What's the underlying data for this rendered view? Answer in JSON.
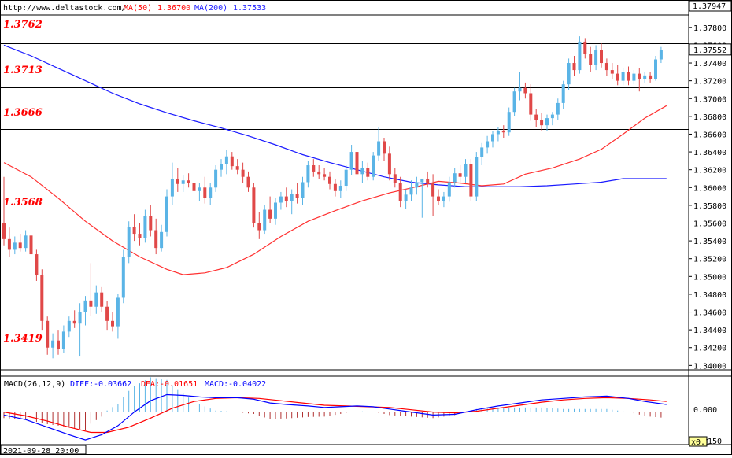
{
  "header": {
    "url": "http://www.deltastock.com/",
    "ma50_label": "MA(50)",
    "ma50_value": "1.36700",
    "ma200_label": "MA(200)",
    "ma200_value": "1.37533"
  },
  "price_axis": {
    "top_value": "1.37947",
    "current_value": "1.37552",
    "ticks": [
      "1.37800",
      "1.37600",
      "1.37400",
      "1.37200",
      "1.37000",
      "1.36800",
      "1.36600",
      "1.36400",
      "1.36200",
      "1.36000",
      "1.35800",
      "1.35600",
      "1.35400",
      "1.35200",
      "1.35000",
      "1.34800",
      "1.34600",
      "1.34400",
      "1.34200",
      "1.34000"
    ]
  },
  "levels": [
    "1.3762",
    "1.3713",
    "1.3666",
    "1.3568",
    "1.3419"
  ],
  "macd_header": {
    "title": "MACD(26,12,9)",
    "diff_label": "DIFF:",
    "diff_value": "-0.03662",
    "dea_label": "DEA:",
    "dea_value": "-0.01651",
    "macd_label": "MACD:",
    "macd_value": "-0.04022"
  },
  "macd_axis": {
    "zero_label": "0.000",
    "bottom_label": "150",
    "scale_badge": "x0.1"
  },
  "date_label": "2021-09-28 20:00",
  "colors": {
    "up": "#5ab4e6",
    "down": "#e04848",
    "ma50": "#ff3030",
    "ma200": "#1a1aff",
    "level_text": "#ff0000",
    "diff": "#0000ff",
    "dea": "#ff0000"
  },
  "chart_data": {
    "type": "candlestick",
    "title": "",
    "ylim": [
      1.3395,
      1.3794
    ],
    "horizontal_levels": [
      1.3762,
      1.3713,
      1.3666,
      1.3568,
      1.3419
    ],
    "candles": [
      {
        "o": 1.356,
        "h": 1.3612,
        "l": 1.3535,
        "c": 1.3542
      },
      {
        "o": 1.3542,
        "h": 1.3555,
        "l": 1.3522,
        "c": 1.353
      },
      {
        "o": 1.353,
        "h": 1.3545,
        "l": 1.3525,
        "c": 1.3538
      },
      {
        "o": 1.3538,
        "h": 1.3548,
        "l": 1.3528,
        "c": 1.3532
      },
      {
        "o": 1.3532,
        "h": 1.3552,
        "l": 1.3528,
        "c": 1.3546
      },
      {
        "o": 1.3546,
        "h": 1.3556,
        "l": 1.352,
        "c": 1.3525
      },
      {
        "o": 1.3525,
        "h": 1.353,
        "l": 1.3495,
        "c": 1.3502
      },
      {
        "o": 1.3502,
        "h": 1.3508,
        "l": 1.344,
        "c": 1.345
      },
      {
        "o": 1.345,
        "h": 1.3455,
        "l": 1.3412,
        "c": 1.342
      },
      {
        "o": 1.342,
        "h": 1.3436,
        "l": 1.3408,
        "c": 1.3428
      },
      {
        "o": 1.3428,
        "h": 1.344,
        "l": 1.3412,
        "c": 1.3418
      },
      {
        "o": 1.3418,
        "h": 1.3445,
        "l": 1.3414,
        "c": 1.3438
      },
      {
        "o": 1.3438,
        "h": 1.3455,
        "l": 1.3432,
        "c": 1.345
      },
      {
        "o": 1.345,
        "h": 1.3462,
        "l": 1.3442,
        "c": 1.3447
      },
      {
        "o": 1.3447,
        "h": 1.347,
        "l": 1.341,
        "c": 1.346
      },
      {
        "o": 1.346,
        "h": 1.3478,
        "l": 1.3445,
        "c": 1.3473
      },
      {
        "o": 1.3473,
        "h": 1.3515,
        "l": 1.3456,
        "c": 1.3466
      },
      {
        "o": 1.3466,
        "h": 1.349,
        "l": 1.3458,
        "c": 1.3482
      },
      {
        "o": 1.3482,
        "h": 1.3488,
        "l": 1.346,
        "c": 1.3466
      },
      {
        "o": 1.3466,
        "h": 1.3472,
        "l": 1.344,
        "c": 1.345
      },
      {
        "o": 1.345,
        "h": 1.346,
        "l": 1.3438,
        "c": 1.3444
      },
      {
        "o": 1.3444,
        "h": 1.348,
        "l": 1.343,
        "c": 1.3476
      },
      {
        "o": 1.3476,
        "h": 1.353,
        "l": 1.347,
        "c": 1.3522
      },
      {
        "o": 1.3522,
        "h": 1.3562,
        "l": 1.3515,
        "c": 1.3556
      },
      {
        "o": 1.3556,
        "h": 1.357,
        "l": 1.354,
        "c": 1.3548
      },
      {
        "o": 1.3548,
        "h": 1.356,
        "l": 1.3535,
        "c": 1.3543
      },
      {
        "o": 1.3543,
        "h": 1.3575,
        "l": 1.3538,
        "c": 1.3568
      },
      {
        "o": 1.3568,
        "h": 1.358,
        "l": 1.3545,
        "c": 1.3552
      },
      {
        "o": 1.3552,
        "h": 1.3565,
        "l": 1.3525,
        "c": 1.3532
      },
      {
        "o": 1.3532,
        "h": 1.3558,
        "l": 1.3528,
        "c": 1.355
      },
      {
        "o": 1.355,
        "h": 1.3598,
        "l": 1.3545,
        "c": 1.359
      },
      {
        "o": 1.359,
        "h": 1.3628,
        "l": 1.358,
        "c": 1.361
      },
      {
        "o": 1.361,
        "h": 1.3622,
        "l": 1.3595,
        "c": 1.3604
      },
      {
        "o": 1.3604,
        "h": 1.3614,
        "l": 1.3595,
        "c": 1.3608
      },
      {
        "o": 1.3608,
        "h": 1.3616,
        "l": 1.36,
        "c": 1.3605
      },
      {
        "o": 1.3605,
        "h": 1.3618,
        "l": 1.359,
        "c": 1.3596
      },
      {
        "o": 1.3596,
        "h": 1.3605,
        "l": 1.3585,
        "c": 1.36
      },
      {
        "o": 1.36,
        "h": 1.3612,
        "l": 1.3582,
        "c": 1.3588
      },
      {
        "o": 1.3588,
        "h": 1.3605,
        "l": 1.358,
        "c": 1.36
      },
      {
        "o": 1.36,
        "h": 1.3625,
        "l": 1.3595,
        "c": 1.362
      },
      {
        "o": 1.362,
        "h": 1.3632,
        "l": 1.3612,
        "c": 1.3626
      },
      {
        "o": 1.3626,
        "h": 1.3642,
        "l": 1.3615,
        "c": 1.3635
      },
      {
        "o": 1.3635,
        "h": 1.364,
        "l": 1.362,
        "c": 1.3624
      },
      {
        "o": 1.3624,
        "h": 1.3632,
        "l": 1.3615,
        "c": 1.362
      },
      {
        "o": 1.362,
        "h": 1.3628,
        "l": 1.3605,
        "c": 1.3612
      },
      {
        "o": 1.3612,
        "h": 1.3618,
        "l": 1.3595,
        "c": 1.36
      },
      {
        "o": 1.36,
        "h": 1.3605,
        "l": 1.3555,
        "c": 1.356
      },
      {
        "o": 1.356,
        "h": 1.3572,
        "l": 1.3542,
        "c": 1.3552
      },
      {
        "o": 1.3552,
        "h": 1.358,
        "l": 1.3548,
        "c": 1.3575
      },
      {
        "o": 1.3575,
        "h": 1.359,
        "l": 1.356,
        "c": 1.3565
      },
      {
        "o": 1.3565,
        "h": 1.3588,
        "l": 1.3558,
        "c": 1.3583
      },
      {
        "o": 1.3583,
        "h": 1.3595,
        "l": 1.3575,
        "c": 1.359
      },
      {
        "o": 1.359,
        "h": 1.36,
        "l": 1.3578,
        "c": 1.3585
      },
      {
        "o": 1.3585,
        "h": 1.3598,
        "l": 1.357,
        "c": 1.3593
      },
      {
        "o": 1.3593,
        "h": 1.3605,
        "l": 1.3582,
        "c": 1.3588
      },
      {
        "o": 1.3588,
        "h": 1.3612,
        "l": 1.358,
        "c": 1.3606
      },
      {
        "o": 1.3606,
        "h": 1.363,
        "l": 1.36,
        "c": 1.3625
      },
      {
        "o": 1.3625,
        "h": 1.3632,
        "l": 1.3612,
        "c": 1.3618
      },
      {
        "o": 1.3618,
        "h": 1.3625,
        "l": 1.361,
        "c": 1.3615
      },
      {
        "o": 1.3615,
        "h": 1.3622,
        "l": 1.3608,
        "c": 1.3612
      },
      {
        "o": 1.3612,
        "h": 1.3618,
        "l": 1.3598,
        "c": 1.3604
      },
      {
        "o": 1.3604,
        "h": 1.361,
        "l": 1.359,
        "c": 1.3596
      },
      {
        "o": 1.3596,
        "h": 1.3608,
        "l": 1.3588,
        "c": 1.3602
      },
      {
        "o": 1.3602,
        "h": 1.3625,
        "l": 1.3596,
        "c": 1.362
      },
      {
        "o": 1.362,
        "h": 1.3648,
        "l": 1.3614,
        "c": 1.364
      },
      {
        "o": 1.364,
        "h": 1.3646,
        "l": 1.361,
        "c": 1.3615
      },
      {
        "o": 1.3615,
        "h": 1.363,
        "l": 1.3605,
        "c": 1.3622
      },
      {
        "o": 1.3622,
        "h": 1.3628,
        "l": 1.3608,
        "c": 1.3612
      },
      {
        "o": 1.3612,
        "h": 1.364,
        "l": 1.3608,
        "c": 1.3636
      },
      {
        "o": 1.3636,
        "h": 1.3668,
        "l": 1.363,
        "c": 1.3652
      },
      {
        "o": 1.3652,
        "h": 1.3656,
        "l": 1.363,
        "c": 1.3638
      },
      {
        "o": 1.3638,
        "h": 1.3646,
        "l": 1.3608,
        "c": 1.3615
      },
      {
        "o": 1.3615,
        "h": 1.3622,
        "l": 1.36,
        "c": 1.3605
      },
      {
        "o": 1.3605,
        "h": 1.3612,
        "l": 1.3578,
        "c": 1.3585
      },
      {
        "o": 1.3585,
        "h": 1.3598,
        "l": 1.3576,
        "c": 1.3592
      },
      {
        "o": 1.3592,
        "h": 1.3608,
        "l": 1.3585,
        "c": 1.36
      },
      {
        "o": 1.36,
        "h": 1.3612,
        "l": 1.3592,
        "c": 1.3606
      },
      {
        "o": 1.3606,
        "h": 1.361,
        "l": 1.3566,
        "c": 1.361
      },
      {
        "o": 1.361,
        "h": 1.3618,
        "l": 1.36,
        "c": 1.3605
      },
      {
        "o": 1.3605,
        "h": 1.3615,
        "l": 1.3568,
        "c": 1.359
      },
      {
        "o": 1.359,
        "h": 1.3598,
        "l": 1.358,
        "c": 1.3585
      },
      {
        "o": 1.3585,
        "h": 1.3595,
        "l": 1.3578,
        "c": 1.359
      },
      {
        "o": 1.359,
        "h": 1.3612,
        "l": 1.3584,
        "c": 1.3606
      },
      {
        "o": 1.3606,
        "h": 1.3622,
        "l": 1.36,
        "c": 1.3616
      },
      {
        "o": 1.3616,
        "h": 1.3625,
        "l": 1.3605,
        "c": 1.3612
      },
      {
        "o": 1.3612,
        "h": 1.3632,
        "l": 1.3605,
        "c": 1.3626
      },
      {
        "o": 1.3626,
        "h": 1.3632,
        "l": 1.3585,
        "c": 1.359
      },
      {
        "o": 1.359,
        "h": 1.364,
        "l": 1.3585,
        "c": 1.3634
      },
      {
        "o": 1.3634,
        "h": 1.365,
        "l": 1.3625,
        "c": 1.3645
      },
      {
        "o": 1.3645,
        "h": 1.3658,
        "l": 1.3638,
        "c": 1.3652
      },
      {
        "o": 1.3652,
        "h": 1.3664,
        "l": 1.3645,
        "c": 1.366
      },
      {
        "o": 1.366,
        "h": 1.3668,
        "l": 1.3652,
        "c": 1.3664
      },
      {
        "o": 1.3664,
        "h": 1.367,
        "l": 1.3656,
        "c": 1.3662
      },
      {
        "o": 1.3662,
        "h": 1.369,
        "l": 1.3658,
        "c": 1.3685
      },
      {
        "o": 1.3685,
        "h": 1.3712,
        "l": 1.368,
        "c": 1.3708
      },
      {
        "o": 1.3708,
        "h": 1.373,
        "l": 1.3698,
        "c": 1.3712
      },
      {
        "o": 1.3712,
        "h": 1.3718,
        "l": 1.37,
        "c": 1.3706
      },
      {
        "o": 1.3706,
        "h": 1.3716,
        "l": 1.3675,
        "c": 1.3682
      },
      {
        "o": 1.3682,
        "h": 1.3688,
        "l": 1.3668,
        "c": 1.3676
      },
      {
        "o": 1.3676,
        "h": 1.3684,
        "l": 1.3664,
        "c": 1.367
      },
      {
        "o": 1.367,
        "h": 1.3682,
        "l": 1.3664,
        "c": 1.3678
      },
      {
        "o": 1.3678,
        "h": 1.3685,
        "l": 1.367,
        "c": 1.3682
      },
      {
        "o": 1.3682,
        "h": 1.37,
        "l": 1.3676,
        "c": 1.3695
      },
      {
        "o": 1.3695,
        "h": 1.372,
        "l": 1.3688,
        "c": 1.3716
      },
      {
        "o": 1.3716,
        "h": 1.3745,
        "l": 1.371,
        "c": 1.374
      },
      {
        "o": 1.374,
        "h": 1.3748,
        "l": 1.3725,
        "c": 1.3732
      },
      {
        "o": 1.3732,
        "h": 1.377,
        "l": 1.3728,
        "c": 1.3764
      },
      {
        "o": 1.3764,
        "h": 1.3768,
        "l": 1.3745,
        "c": 1.375
      },
      {
        "o": 1.375,
        "h": 1.3758,
        "l": 1.373,
        "c": 1.3738
      },
      {
        "o": 1.3738,
        "h": 1.376,
        "l": 1.3732,
        "c": 1.3755
      },
      {
        "o": 1.3755,
        "h": 1.3762,
        "l": 1.3735,
        "c": 1.374
      },
      {
        "o": 1.374,
        "h": 1.3745,
        "l": 1.3725,
        "c": 1.3732
      },
      {
        "o": 1.3732,
        "h": 1.374,
        "l": 1.3722,
        "c": 1.3728
      },
      {
        "o": 1.3728,
        "h": 1.3738,
        "l": 1.3715,
        "c": 1.372
      },
      {
        "o": 1.372,
        "h": 1.3734,
        "l": 1.3715,
        "c": 1.373
      },
      {
        "o": 1.373,
        "h": 1.3736,
        "l": 1.3715,
        "c": 1.372
      },
      {
        "o": 1.372,
        "h": 1.3732,
        "l": 1.3716,
        "c": 1.3728
      },
      {
        "o": 1.3728,
        "h": 1.3734,
        "l": 1.3708,
        "c": 1.3722
      },
      {
        "o": 1.3722,
        "h": 1.373,
        "l": 1.3718,
        "c": 1.3726
      },
      {
        "o": 1.3726,
        "h": 1.373,
        "l": 1.3718,
        "c": 1.3722
      },
      {
        "o": 1.3722,
        "h": 1.3748,
        "l": 1.372,
        "c": 1.3744
      },
      {
        "o": 1.3744,
        "h": 1.3758,
        "l": 1.374,
        "c": 1.3755
      }
    ],
    "ma50": [
      [
        1,
        1.3628
      ],
      [
        6,
        1.3612
      ],
      [
        11,
        1.3588
      ],
      [
        16,
        1.3562
      ],
      [
        21,
        1.354
      ],
      [
        26,
        1.3522
      ],
      [
        31,
        1.3508
      ],
      [
        34,
        1.3502
      ],
      [
        38,
        1.3504
      ],
      [
        42,
        1.351
      ],
      [
        47,
        1.3525
      ],
      [
        52,
        1.3545
      ],
      [
        57,
        1.3562
      ],
      [
        62,
        1.3574
      ],
      [
        67,
        1.3585
      ],
      [
        72,
        1.3594
      ],
      [
        77,
        1.3601
      ],
      [
        81,
        1.3607
      ],
      [
        85,
        1.3605
      ],
      [
        89,
        1.3602
      ],
      [
        93,
        1.3604
      ],
      [
        97,
        1.3615
      ],
      [
        102,
        1.3622
      ],
      [
        107,
        1.3632
      ],
      [
        111,
        1.3643
      ],
      [
        115,
        1.366
      ],
      [
        119,
        1.3678
      ],
      [
        123,
        1.3692
      ]
    ],
    "ma200": [
      [
        1,
        1.376
      ],
      [
        6,
        1.3748
      ],
      [
        11,
        1.3734
      ],
      [
        16,
        1.372
      ],
      [
        21,
        1.3706
      ],
      [
        26,
        1.3694
      ],
      [
        31,
        1.3684
      ],
      [
        36,
        1.3675
      ],
      [
        41,
        1.3667
      ],
      [
        46,
        1.3658
      ],
      [
        51,
        1.3648
      ],
      [
        56,
        1.3637
      ],
      [
        61,
        1.3628
      ],
      [
        66,
        1.362
      ],
      [
        71,
        1.3612
      ],
      [
        76,
        1.3606
      ],
      [
        81,
        1.3603
      ],
      [
        86,
        1.3601
      ],
      [
        91,
        1.3601
      ],
      [
        96,
        1.3601
      ],
      [
        101,
        1.3602
      ],
      [
        106,
        1.3604
      ],
      [
        111,
        1.3606
      ],
      [
        115,
        1.361
      ],
      [
        119,
        1.361
      ],
      [
        123,
        1.361
      ]
    ],
    "macd": {
      "diff": [
        [
          1,
          -0.004
        ],
        [
          5,
          -0.01
        ],
        [
          9,
          -0.02
        ],
        [
          13,
          -0.03
        ],
        [
          16,
          -0.037
        ],
        [
          19,
          -0.03
        ],
        [
          22,
          -0.018
        ],
        [
          25,
          0.0
        ],
        [
          28,
          0.015
        ],
        [
          31,
          0.023
        ],
        [
          34,
          0.022
        ],
        [
          37,
          0.02
        ],
        [
          40,
          0.019
        ],
        [
          44,
          0.019
        ],
        [
          47,
          0.017
        ],
        [
          50,
          0.012
        ],
        [
          53,
          0.01
        ],
        [
          57,
          0.008
        ],
        [
          60,
          0.006
        ],
        [
          63,
          0.007
        ],
        [
          66,
          0.008
        ],
        [
          69,
          0.007
        ],
        [
          72,
          0.004
        ],
        [
          76,
          0.0
        ],
        [
          80,
          -0.004
        ],
        [
          84,
          -0.003
        ],
        [
          88,
          0.003
        ],
        [
          92,
          0.008
        ],
        [
          96,
          0.012
        ],
        [
          100,
          0.016
        ],
        [
          104,
          0.018
        ],
        [
          108,
          0.02
        ],
        [
          112,
          0.021
        ],
        [
          116,
          0.018
        ],
        [
          119,
          0.014
        ],
        [
          123,
          0.01
        ]
      ],
      "dea": [
        [
          1,
          0.0
        ],
        [
          5,
          -0.005
        ],
        [
          9,
          -0.012
        ],
        [
          13,
          -0.02
        ],
        [
          17,
          -0.027
        ],
        [
          20,
          -0.027
        ],
        [
          24,
          -0.02
        ],
        [
          28,
          -0.008
        ],
        [
          32,
          0.005
        ],
        [
          36,
          0.014
        ],
        [
          40,
          0.018
        ],
        [
          44,
          0.019
        ],
        [
          48,
          0.018
        ],
        [
          52,
          0.015
        ],
        [
          56,
          0.012
        ],
        [
          60,
          0.009
        ],
        [
          64,
          0.008
        ],
        [
          68,
          0.007
        ],
        [
          72,
          0.006
        ],
        [
          76,
          0.003
        ],
        [
          80,
          0.0
        ],
        [
          84,
          -0.001
        ],
        [
          88,
          0.001
        ],
        [
          92,
          0.005
        ],
        [
          96,
          0.009
        ],
        [
          100,
          0.013
        ],
        [
          104,
          0.016
        ],
        [
          108,
          0.018
        ],
        [
          112,
          0.019
        ],
        [
          116,
          0.018
        ],
        [
          120,
          0.016
        ],
        [
          123,
          0.014
        ]
      ],
      "ylim": [
        -0.04,
        0.035
      ]
    }
  }
}
